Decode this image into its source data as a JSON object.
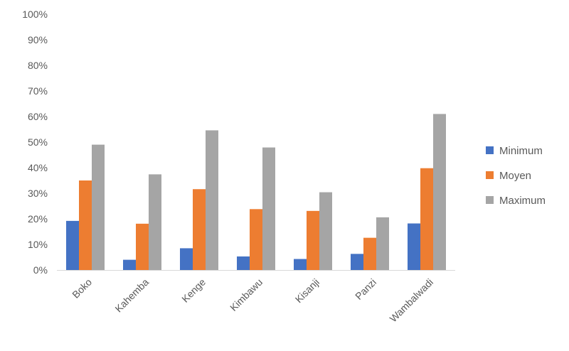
{
  "chart_data": {
    "type": "bar",
    "title": "",
    "xlabel": "",
    "ylabel": "",
    "ylim": [
      0,
      100
    ],
    "y_ticks": [
      "0%",
      "10%",
      "20%",
      "30%",
      "40%",
      "50%",
      "60%",
      "70%",
      "80%",
      "90%",
      "100%"
    ],
    "categories": [
      "Boko",
      "Kahemba",
      "Kenge",
      "Kimbawu",
      "Kisanji",
      "Panzi",
      "Wambalwadi"
    ],
    "series": [
      {
        "name": "Minimum",
        "color": "#4472C4",
        "values": [
          19.2,
          4.0,
          8.5,
          5.3,
          4.3,
          6.3,
          18.2
        ]
      },
      {
        "name": "Moyen",
        "color": "#ED7D31",
        "values": [
          35.0,
          18.1,
          31.6,
          23.8,
          23.1,
          12.6,
          39.8
        ]
      },
      {
        "name": "Maximum",
        "color": "#A5A5A5",
        "values": [
          49.0,
          37.4,
          54.6,
          47.9,
          30.4,
          20.6,
          61.0
        ]
      }
    ],
    "grid": false,
    "legend": "right"
  }
}
